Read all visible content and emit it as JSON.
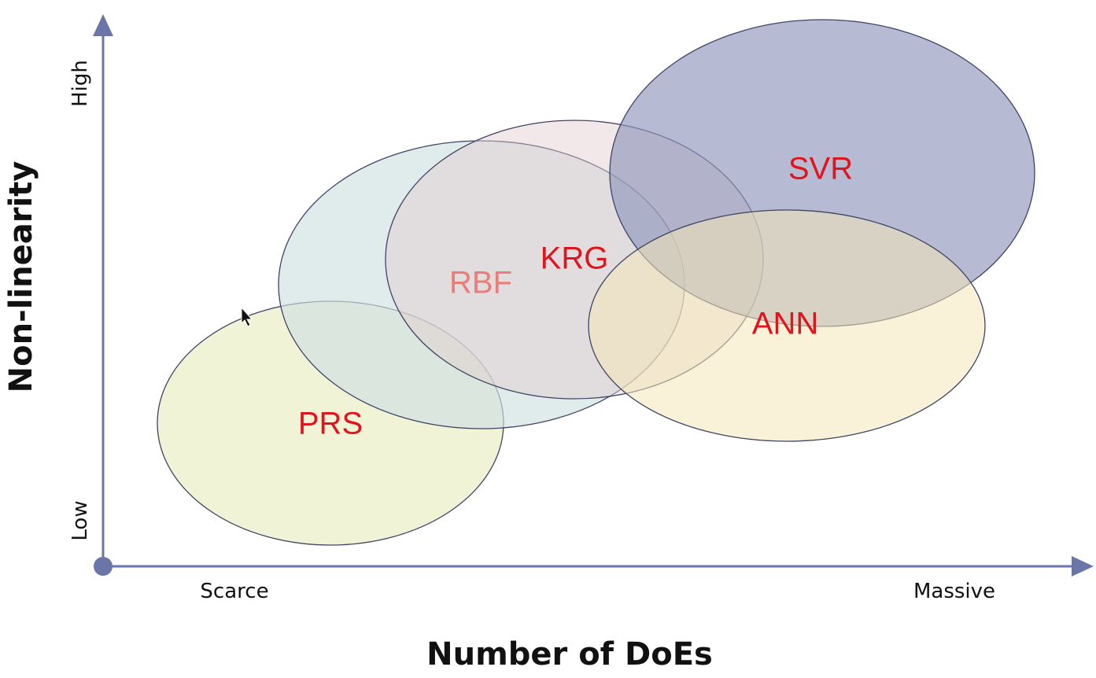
{
  "axes": {
    "x_title": "Number of DoEs",
    "y_title": "Non-linearity",
    "x_low_label": "Scarce",
    "x_high_label": "Massive",
    "y_low_label": "Low",
    "y_high_label": "High",
    "axis_color": "#6a75a8"
  },
  "regions": [
    {
      "key": "prs",
      "label": "PRS",
      "fill": "#e9edc0",
      "label_color": "#e0141c"
    },
    {
      "key": "rbf",
      "label": "RBF",
      "fill": "#cfe0e2",
      "label_color": "#ec7c78"
    },
    {
      "key": "krg",
      "label": "KRG",
      "fill": "#e2cdcf",
      "label_color": "#e0141c"
    },
    {
      "key": "svr",
      "label": "SVR",
      "fill": "#8f97bb",
      "label_color": "#e0141c"
    },
    {
      "key": "ann",
      "label": "ANN",
      "fill": "#f4e6b8",
      "label_color": "#e0141c"
    }
  ]
}
